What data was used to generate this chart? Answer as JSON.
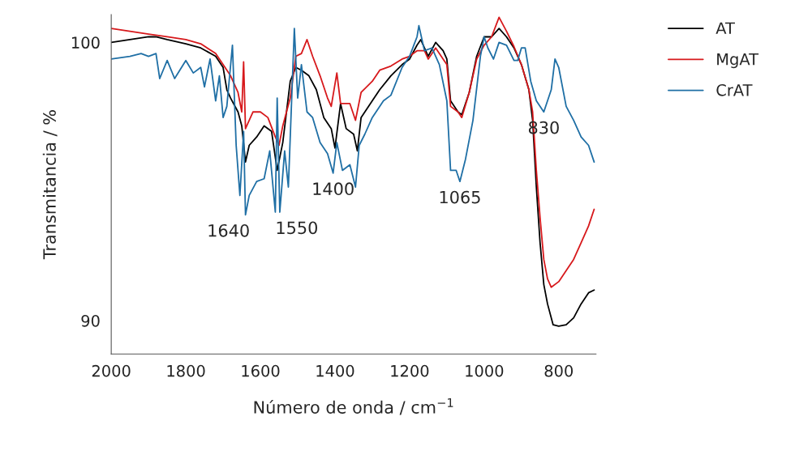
{
  "chart_data": {
    "type": "line",
    "xlabel": "Número de onda / cm$^{−1}$",
    "ylabel": "Transmitancia / %",
    "xlim": [
      2000,
      700
    ],
    "xticks": [
      2000,
      1800,
      1600,
      1400,
      1200,
      1000,
      800
    ],
    "ylim": [
      88.8,
      101
    ],
    "yticks": [
      90,
      100
    ],
    "grid": false,
    "legend": "top right",
    "marker": "none",
    "line_style": "solid",
    "series": [
      {
        "name": "AT",
        "color": "#000000",
        "x": [
          2000,
          1950,
          1900,
          1880,
          1850,
          1800,
          1760,
          1720,
          1700,
          1690,
          1680,
          1660,
          1650,
          1640,
          1630,
          1610,
          1590,
          1570,
          1555,
          1540,
          1530,
          1520,
          1505,
          1490,
          1470,
          1450,
          1430,
          1410,
          1400,
          1385,
          1370,
          1350,
          1340,
          1330,
          1300,
          1280,
          1250,
          1220,
          1200,
          1180,
          1170,
          1150,
          1130,
          1110,
          1100,
          1090,
          1070,
          1060,
          1040,
          1020,
          1000,
          980,
          960,
          940,
          920,
          900,
          880,
          870,
          860,
          850,
          840,
          830,
          815,
          800,
          780,
          760,
          740,
          720,
          705
        ],
        "values": [
          100.0,
          100.1,
          100.2,
          100.2,
          100.1,
          99.95,
          99.8,
          99.5,
          99.1,
          98.3,
          98.0,
          97.5,
          97.0,
          95.7,
          96.3,
          96.6,
          97.0,
          96.8,
          95.4,
          96.4,
          97.5,
          98.6,
          99.1,
          99.0,
          98.8,
          98.3,
          97.3,
          96.9,
          96.2,
          97.8,
          96.9,
          96.7,
          96.1,
          97.3,
          97.9,
          98.3,
          98.8,
          99.2,
          99.4,
          99.9,
          100.1,
          99.5,
          100.0,
          99.7,
          99.4,
          97.9,
          97.5,
          97.4,
          98.2,
          99.5,
          100.2,
          100.2,
          100.5,
          100.2,
          99.8,
          99.2,
          98.3,
          97.2,
          94.8,
          92.8,
          91.3,
          90.6,
          89.85,
          89.8,
          89.85,
          90.1,
          90.6,
          91.0,
          91.1
        ]
      },
      {
        "name": "MgAT",
        "color": "#d7191c",
        "x": [
          2000,
          1950,
          1900,
          1850,
          1800,
          1760,
          1720,
          1700,
          1680,
          1660,
          1650,
          1645,
          1640,
          1620,
          1600,
          1580,
          1560,
          1550,
          1540,
          1520,
          1505,
          1490,
          1475,
          1460,
          1440,
          1420,
          1410,
          1395,
          1385,
          1360,
          1345,
          1330,
          1300,
          1280,
          1250,
          1220,
          1200,
          1180,
          1160,
          1150,
          1130,
          1110,
          1100,
          1090,
          1070,
          1060,
          1040,
          1020,
          1000,
          980,
          960,
          940,
          920,
          900,
          880,
          870,
          860,
          850,
          840,
          830,
          820,
          800,
          780,
          760,
          740,
          720,
          705
        ],
        "values": [
          100.5,
          100.4,
          100.3,
          100.2,
          100.1,
          99.95,
          99.6,
          99.2,
          98.8,
          98.2,
          97.5,
          99.3,
          96.9,
          97.5,
          97.5,
          97.3,
          96.6,
          96.3,
          97.0,
          98.0,
          99.5,
          99.6,
          100.1,
          99.5,
          98.8,
          98.0,
          97.7,
          98.9,
          97.8,
          97.8,
          97.2,
          98.2,
          98.6,
          99.0,
          99.15,
          99.4,
          99.5,
          99.7,
          99.7,
          99.4,
          99.8,
          99.4,
          99.2,
          97.7,
          97.5,
          97.3,
          98.2,
          99.4,
          99.9,
          100.2,
          100.9,
          100.4,
          99.85,
          99.2,
          98.3,
          97.5,
          95.4,
          93.7,
          92.2,
          91.5,
          91.2,
          91.4,
          91.8,
          92.2,
          92.8,
          93.4,
          94.0
        ]
      },
      {
        "name": "CrAT",
        "color": "#1f6fa5",
        "x": [
          2000,
          1950,
          1920,
          1900,
          1880,
          1870,
          1850,
          1830,
          1800,
          1780,
          1760,
          1750,
          1735,
          1720,
          1710,
          1700,
          1690,
          1675,
          1665,
          1655,
          1645,
          1640,
          1630,
          1610,
          1590,
          1575,
          1560,
          1555,
          1548,
          1535,
          1525,
          1509,
          1500,
          1490,
          1475,
          1460,
          1440,
          1420,
          1405,
          1395,
          1380,
          1360,
          1345,
          1335,
          1320,
          1300,
          1270,
          1250,
          1220,
          1200,
          1180,
          1175,
          1160,
          1140,
          1120,
          1100,
          1090,
          1075,
          1065,
          1050,
          1030,
          1010,
          1000,
          990,
          975,
          960,
          940,
          920,
          910,
          900,
          890,
          875,
          860,
          840,
          820,
          810,
          800,
          780,
          760,
          740,
          720,
          705
        ],
        "values": [
          99.4,
          99.5,
          99.6,
          99.5,
          99.6,
          98.7,
          99.35,
          98.7,
          99.35,
          98.9,
          99.1,
          98.4,
          99.4,
          97.9,
          98.8,
          97.3,
          97.7,
          99.9,
          96.3,
          94.5,
          96.8,
          93.8,
          94.5,
          95.0,
          95.1,
          96.1,
          93.9,
          98.0,
          93.9,
          96.1,
          94.8,
          100.5,
          98.0,
          99.2,
          97.5,
          97.3,
          96.4,
          96.0,
          95.3,
          96.4,
          95.4,
          95.6,
          94.8,
          96.3,
          96.7,
          97.3,
          97.9,
          98.1,
          99.1,
          99.5,
          100.2,
          100.6,
          99.7,
          99.8,
          99.2,
          97.9,
          95.4,
          95.4,
          95.0,
          95.8,
          97.2,
          99.5,
          100.2,
          99.8,
          99.4,
          100.0,
          99.9,
          99.35,
          99.35,
          99.8,
          99.8,
          98.6,
          97.9,
          97.5,
          98.3,
          99.4,
          99.1,
          97.7,
          97.2,
          96.6,
          96.3,
          95.7
        ]
      }
    ],
    "annotations": [
      {
        "text": "1640",
        "x": 1640,
        "y": 93.8
      },
      {
        "text": "1550",
        "x": 1548,
        "y": 93.9
      },
      {
        "text": "1400",
        "x": 1405,
        "y": 95.3
      },
      {
        "text": "1065",
        "x": 1065,
        "y": 95.0
      },
      {
        "text": "830",
        "x": 840,
        "y": 97.5
      }
    ]
  }
}
